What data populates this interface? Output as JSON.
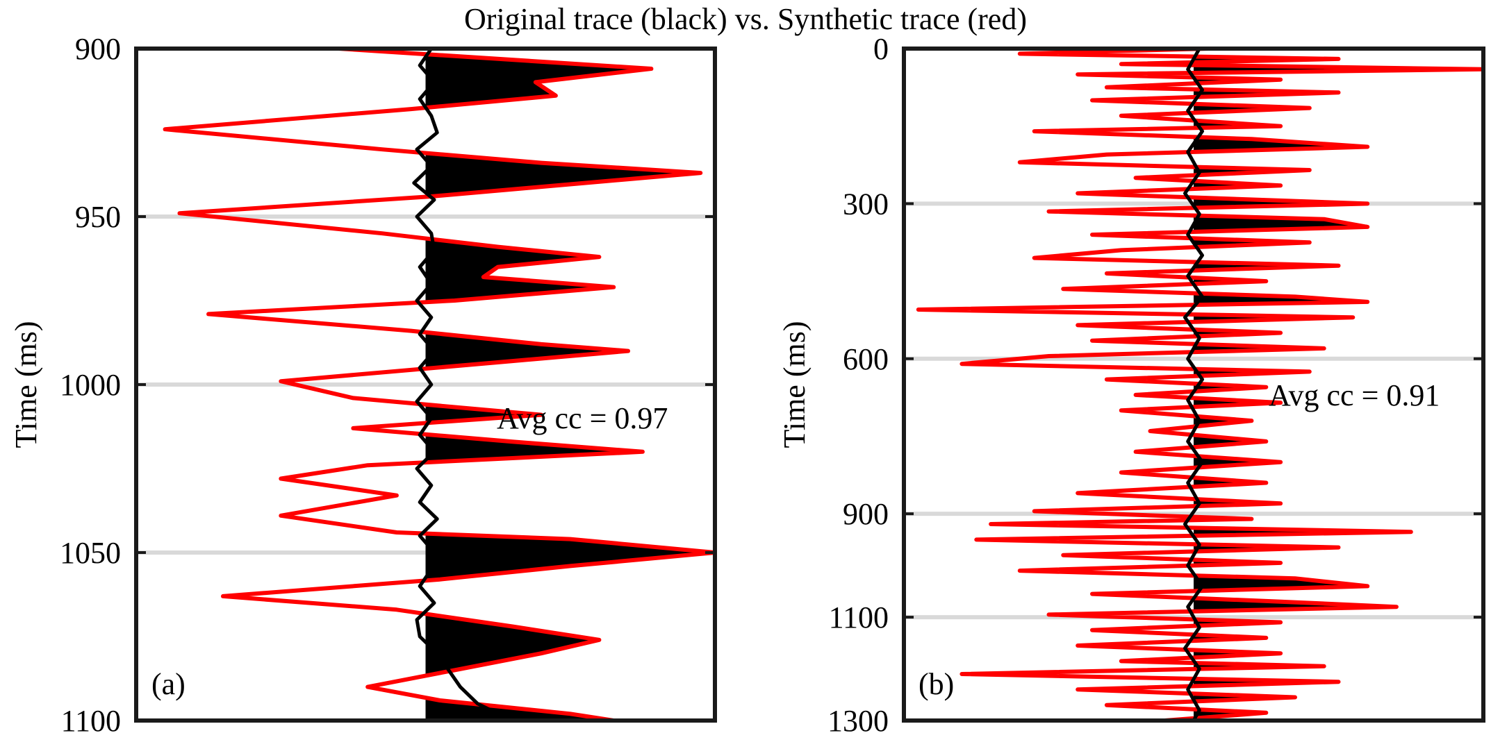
{
  "figure": {
    "title": "Original trace (black) vs. Synthetic trace (red)"
  },
  "colors": {
    "original_trace": "#000000",
    "synthetic_trace": "#ff0000",
    "grid": "#d9d9d9",
    "frame": "#1a1a1a"
  },
  "chart_data": [
    {
      "type": "line",
      "panel_label": "(a)",
      "ylabel": "Time (ms)",
      "ylim": [
        900,
        1100
      ],
      "y_reversed": true,
      "yticks": [
        900,
        950,
        1000,
        1050,
        1100
      ],
      "grid_y": [
        950,
        1000,
        1050
      ],
      "annotation": "Avg cc = 0.97",
      "baseline": 0,
      "xlim": [
        -1,
        1
      ],
      "series": [
        {
          "role": "synthetic",
          "color": "#ff0000",
          "points": [
            [
              900,
              -0.3
            ],
            [
              906,
              0.78
            ],
            [
              910,
              0.38
            ],
            [
              914,
              0.45
            ],
            [
              918,
              -0.05
            ],
            [
              924,
              -0.9
            ],
            [
              930,
              -0.15
            ],
            [
              934,
              0.4
            ],
            [
              937,
              0.95
            ],
            [
              940,
              0.55
            ],
            [
              944,
              0.02
            ],
            [
              949,
              -0.85
            ],
            [
              955,
              -0.15
            ],
            [
              959,
              0.25
            ],
            [
              962,
              0.6
            ],
            [
              965,
              0.25
            ],
            [
              968,
              0.2
            ],
            [
              971,
              0.65
            ],
            [
              975,
              0.1
            ],
            [
              979,
              -0.75
            ],
            [
              984,
              -0.05
            ],
            [
              988,
              0.4
            ],
            [
              990,
              0.7
            ],
            [
              993,
              0.3
            ],
            [
              999,
              -0.5
            ],
            [
              1004,
              -0.25
            ],
            [
              1009,
              0.4
            ],
            [
              1013,
              -0.25
            ],
            [
              1017,
              0.3
            ],
            [
              1020,
              0.75
            ],
            [
              1024,
              -0.2
            ],
            [
              1028,
              -0.5
            ],
            [
              1033,
              -0.1
            ],
            [
              1039,
              -0.5
            ],
            [
              1044,
              -0.1
            ],
            [
              1046,
              0.5
            ],
            [
              1050,
              1.0
            ],
            [
              1054,
              0.5
            ],
            [
              1058,
              0.05
            ],
            [
              1063,
              -0.7
            ],
            [
              1067,
              -0.1
            ],
            [
              1072,
              0.3
            ],
            [
              1076,
              0.6
            ],
            [
              1080,
              0.4
            ],
            [
              1085,
              0.1
            ],
            [
              1090,
              -0.2
            ],
            [
              1094,
              0.05
            ],
            [
              1098,
              0.5
            ],
            [
              1100,
              0.65
            ]
          ]
        },
        {
          "role": "original",
          "color": "#000000",
          "points": [
            [
              900,
              0.02
            ],
            [
              905,
              -0.02
            ],
            [
              910,
              0.03
            ],
            [
              915,
              -0.02
            ],
            [
              920,
              0.02
            ],
            [
              925,
              0.04
            ],
            [
              930,
              -0.03
            ],
            [
              935,
              0.02
            ],
            [
              940,
              -0.04
            ],
            [
              945,
              0.03
            ],
            [
              950,
              -0.03
            ],
            [
              955,
              0.02
            ],
            [
              960,
              0.03
            ],
            [
              965,
              -0.02
            ],
            [
              970,
              0.02
            ],
            [
              975,
              -0.03
            ],
            [
              980,
              0.02
            ],
            [
              985,
              -0.02
            ],
            [
              990,
              0.03
            ],
            [
              995,
              -0.02
            ],
            [
              1000,
              0.02
            ],
            [
              1005,
              -0.03
            ],
            [
              1010,
              0.02
            ],
            [
              1015,
              -0.02
            ],
            [
              1020,
              0.03
            ],
            [
              1025,
              -0.03
            ],
            [
              1030,
              0.02
            ],
            [
              1035,
              -0.02
            ],
            [
              1040,
              0.04
            ],
            [
              1045,
              -0.02
            ],
            [
              1050,
              0.03
            ],
            [
              1055,
              0.02
            ],
            [
              1060,
              -0.02
            ],
            [
              1065,
              0.03
            ],
            [
              1070,
              -0.03
            ],
            [
              1075,
              -0.02
            ],
            [
              1080,
              0.04
            ],
            [
              1085,
              0.08
            ],
            [
              1090,
              0.12
            ],
            [
              1095,
              0.18
            ],
            [
              1100,
              0.3
            ]
          ]
        }
      ]
    },
    {
      "type": "line",
      "panel_label": "(b)",
      "ylabel": "Time (ms)",
      "ylim": [
        0,
        1300
      ],
      "y_reversed": true,
      "yticks": [
        0,
        300,
        600,
        900,
        1100,
        1300
      ],
      "grid_y": [
        300,
        600,
        900,
        1100
      ],
      "annotation": "Avg cc = 0.91",
      "baseline": 0,
      "xlim": [
        -1,
        1
      ],
      "series": [
        {
          "role": "synthetic",
          "color": "#ff0000",
          "points": [
            [
              0,
              0.05
            ],
            [
              10,
              -0.6
            ],
            [
              20,
              0.5
            ],
            [
              30,
              -0.25
            ],
            [
              40,
              1.0
            ],
            [
              50,
              -0.4
            ],
            [
              60,
              0.3
            ],
            [
              75,
              -0.3
            ],
            [
              85,
              0.5
            ],
            [
              100,
              -0.35
            ],
            [
              115,
              0.4
            ],
            [
              130,
              -0.25
            ],
            [
              150,
              0.3
            ],
            [
              160,
              -0.55
            ],
            [
              175,
              0.2
            ],
            [
              190,
              0.6
            ],
            [
              205,
              -0.3
            ],
            [
              220,
              -0.6
            ],
            [
              235,
              0.4
            ],
            [
              250,
              -0.2
            ],
            [
              265,
              0.3
            ],
            [
              280,
              -0.4
            ],
            [
              300,
              0.6
            ],
            [
              315,
              -0.5
            ],
            [
              330,
              0.45
            ],
            [
              345,
              0.6
            ],
            [
              360,
              -0.35
            ],
            [
              375,
              0.4
            ],
            [
              390,
              -0.25
            ],
            [
              405,
              -0.55
            ],
            [
              420,
              0.5
            ],
            [
              435,
              -0.3
            ],
            [
              450,
              0.25
            ],
            [
              465,
              -0.45
            ],
            [
              480,
              0.35
            ],
            [
              490,
              0.6
            ],
            [
              505,
              -0.95
            ],
            [
              520,
              0.55
            ],
            [
              535,
              -0.4
            ],
            [
              550,
              0.3
            ],
            [
              565,
              -0.35
            ],
            [
              580,
              0.45
            ],
            [
              595,
              -0.5
            ],
            [
              610,
              -0.8
            ],
            [
              625,
              0.4
            ],
            [
              640,
              -0.3
            ],
            [
              655,
              0.25
            ],
            [
              670,
              -0.2
            ],
            [
              685,
              0.3
            ],
            [
              700,
              -0.25
            ],
            [
              720,
              0.2
            ],
            [
              740,
              -0.15
            ],
            [
              760,
              0.25
            ],
            [
              780,
              -0.2
            ],
            [
              800,
              0.3
            ],
            [
              820,
              -0.25
            ],
            [
              840,
              0.25
            ],
            [
              860,
              -0.4
            ],
            [
              880,
              0.3
            ],
            [
              895,
              -0.55
            ],
            [
              910,
              0.2
            ],
            [
              920,
              -0.7
            ],
            [
              935,
              0.75
            ],
            [
              950,
              -0.75
            ],
            [
              965,
              0.5
            ],
            [
              980,
              -0.45
            ],
            [
              995,
              0.3
            ],
            [
              1010,
              -0.6
            ],
            [
              1025,
              0.35
            ],
            [
              1040,
              0.6
            ],
            [
              1055,
              -0.35
            ],
            [
              1070,
              0.3
            ],
            [
              1080,
              0.7
            ],
            [
              1095,
              -0.5
            ],
            [
              1110,
              0.3
            ],
            [
              1125,
              -0.35
            ],
            [
              1140,
              0.25
            ],
            [
              1155,
              -0.4
            ],
            [
              1170,
              0.3
            ],
            [
              1185,
              -0.25
            ],
            [
              1195,
              0.45
            ],
            [
              1210,
              -0.8
            ],
            [
              1225,
              0.5
            ],
            [
              1240,
              -0.4
            ],
            [
              1255,
              0.35
            ],
            [
              1270,
              -0.3
            ],
            [
              1285,
              0.25
            ],
            [
              1300,
              -0.1
            ]
          ]
        },
        {
          "role": "original",
          "color": "#000000",
          "points": [
            [
              0,
              0.02
            ],
            [
              40,
              -0.02
            ],
            [
              80,
              0.03
            ],
            [
              120,
              -0.02
            ],
            [
              160,
              0.03
            ],
            [
              200,
              -0.02
            ],
            [
              240,
              0.02
            ],
            [
              280,
              -0.03
            ],
            [
              320,
              0.02
            ],
            [
              360,
              -0.02
            ],
            [
              400,
              0.03
            ],
            [
              440,
              -0.02
            ],
            [
              480,
              0.03
            ],
            [
              520,
              -0.03
            ],
            [
              560,
              0.02
            ],
            [
              600,
              -0.02
            ],
            [
              640,
              0.03
            ],
            [
              680,
              -0.02
            ],
            [
              720,
              0.02
            ],
            [
              760,
              -0.02
            ],
            [
              800,
              0.03
            ],
            [
              840,
              -0.02
            ],
            [
              880,
              0.02
            ],
            [
              920,
              -0.03
            ],
            [
              960,
              0.02
            ],
            [
              1000,
              -0.02
            ],
            [
              1040,
              0.03
            ],
            [
              1080,
              -0.02
            ],
            [
              1120,
              0.02
            ],
            [
              1160,
              -0.03
            ],
            [
              1200,
              0.02
            ],
            [
              1240,
              -0.02
            ],
            [
              1280,
              0.02
            ],
            [
              1300,
              0.0
            ]
          ]
        }
      ]
    }
  ]
}
